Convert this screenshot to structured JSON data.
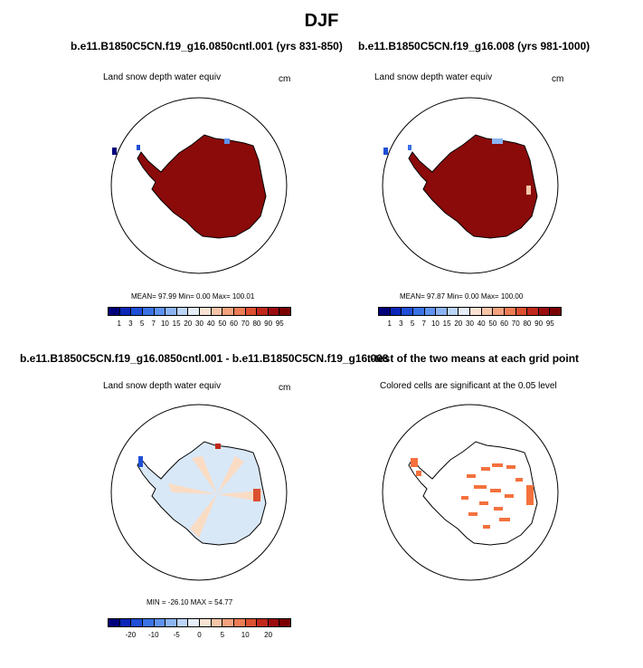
{
  "figure": {
    "title": "DJF"
  },
  "panels": [
    {
      "title": "b.e11.B1850C5CN.f19_g16.0850cntl.001 (yrs 831-850)",
      "variable": "Land snow depth water equiv",
      "units": "cm",
      "stats": "MEAN=  97.99  Min=   0.00  Max= 100.01"
    },
    {
      "title": "b.e11.B1850C5CN.f19_g16.008 (yrs 981-1000)",
      "variable": "Land snow depth water equiv",
      "units": "cm",
      "stats": "MEAN=  97.87  Min=   0.00  Max= 100.00"
    },
    {
      "title": "b.e11.B1850C5CN.f19_g16.0850cntl.001 - b.e11.B1850C5CN.f19_g16.008",
      "variable": "Land snow depth water equiv",
      "units": "cm",
      "stats": "MIN = -26.10 MAX =  54.77"
    },
    {
      "title": "t-test of the two means at each grid point",
      "variable": "Colored cells are significant at the 0.05 level"
    }
  ],
  "colorbars": {
    "absolute": {
      "labels": [
        "1",
        "3",
        "5",
        "7",
        "10",
        "15",
        "20",
        "30",
        "40",
        "50",
        "60",
        "70",
        "80",
        "90",
        "95"
      ],
      "colors": [
        "#00007a",
        "#0a25b8",
        "#1f4fd6",
        "#3a72e6",
        "#5f92ee",
        "#8cb4f4",
        "#bcd4f8",
        "#e6eef9",
        "#fbe3d3",
        "#f7c4a8",
        "#f4a27e",
        "#ed7c55",
        "#dc5030",
        "#c0271b",
        "#9b0c0e",
        "#7a0000"
      ]
    },
    "difference": {
      "labels": [
        "-20",
        "-10",
        "-5",
        "0",
        "5",
        "10",
        "20"
      ],
      "colors": [
        "#00007a",
        "#0a25b8",
        "#1f4fd6",
        "#3a72e6",
        "#5f92ee",
        "#8cb4f4",
        "#bcd4f8",
        "#e6eef9",
        "#fbe3d3",
        "#f7c4a8",
        "#f4a27e",
        "#ed7c55",
        "#dc5030",
        "#c0271b",
        "#9b0c0e",
        "#7a0000"
      ]
    }
  },
  "map_colors": {
    "snow_high": "#8b0a0a",
    "diff_neg": "#d9e8f7",
    "diff_pos": "#fadcc4",
    "signif": "#f4713e",
    "outline": "#000000"
  }
}
